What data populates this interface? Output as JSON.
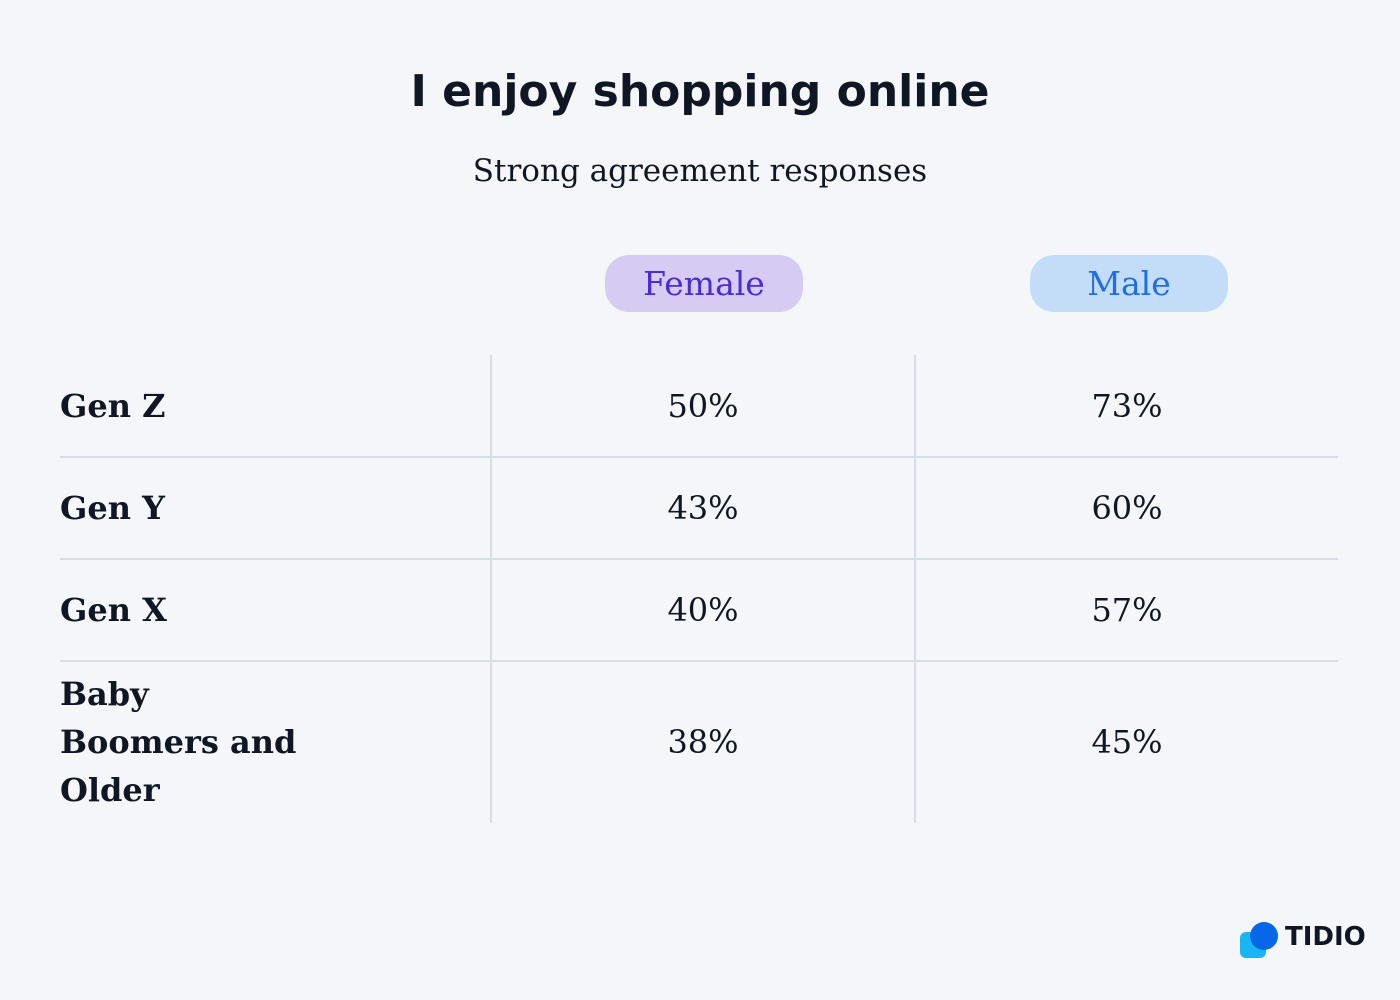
{
  "header": {
    "title": "I enjoy shopping online",
    "subtitle": "Strong agreement responses"
  },
  "table": {
    "columns": [
      "Female",
      "Male"
    ],
    "rows": [
      [
        "Gen Z",
        "50%",
        "73%"
      ],
      [
        "Gen Y",
        "43%",
        "60%"
      ],
      [
        "Gen X",
        "40%",
        "57%"
      ],
      [
        "Baby Boomers and Older",
        "38%",
        "45%"
      ]
    ]
  },
  "logo": "TIDIO"
}
